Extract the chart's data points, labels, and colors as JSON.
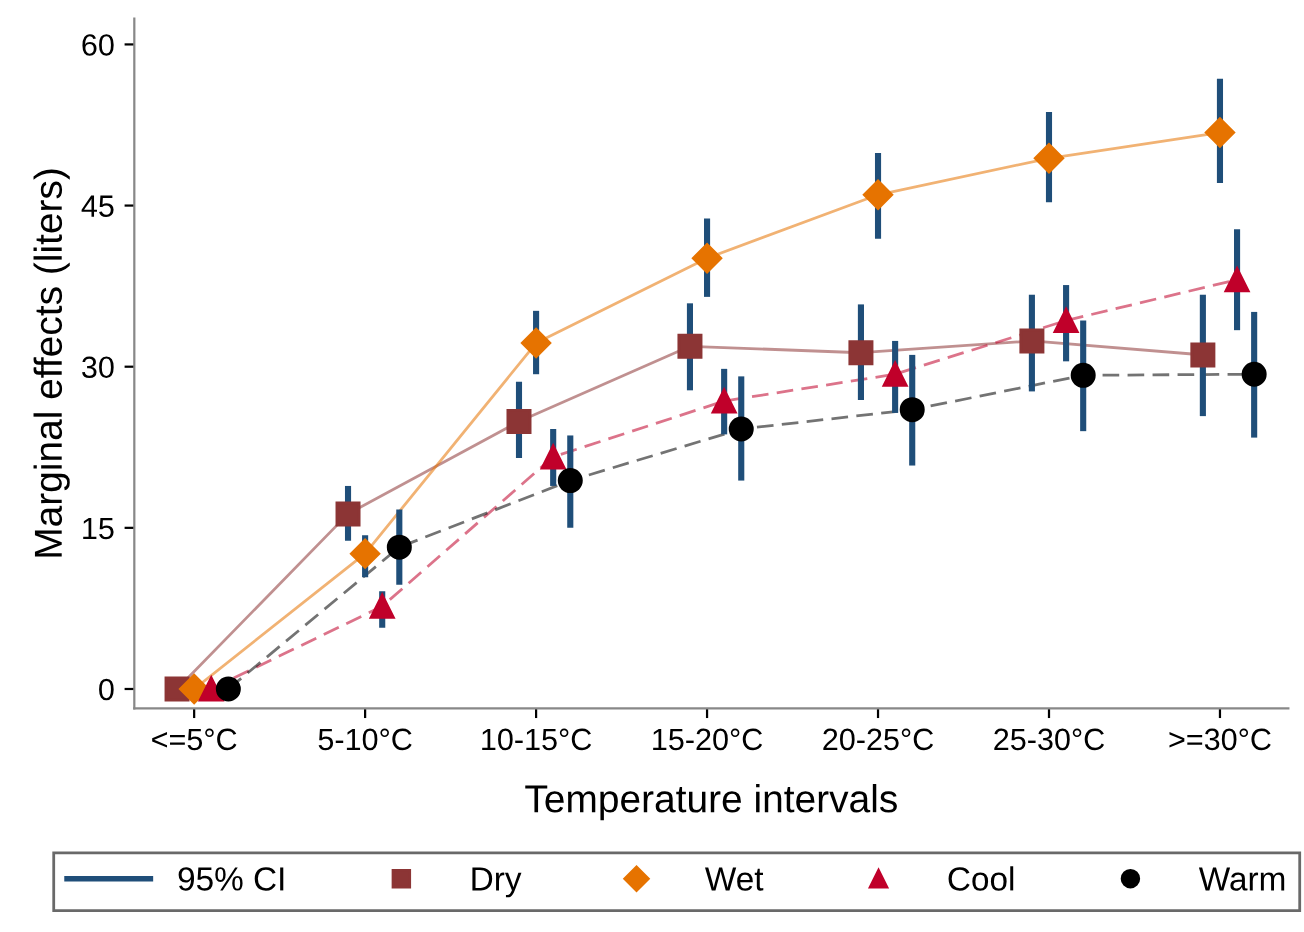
{
  "chart_data": {
    "type": "line",
    "xlabel": "Temperature intervals",
    "ylabel": "Marginal effects (liters)",
    "categories": [
      "<=5°C",
      "5-10°C",
      "10-15°C",
      "15-20°C",
      "20-25°C",
      "25-30°C",
      ">=30°C"
    ],
    "ylim": [
      -1.8,
      62.4
    ],
    "yticks": [
      0,
      15,
      30,
      45,
      60
    ],
    "grid": false,
    "legend": "bottom",
    "series": [
      {
        "name": "95% CI",
        "color": "#1f4e79",
        "values": [
          null,
          null,
          null,
          null,
          null,
          null,
          null
        ],
        "marker": "none",
        "line_style": "solid"
      },
      {
        "name": "Dry",
        "color": "#8c3535",
        "marker": "square",
        "line_style": "solid",
        "values": [
          0,
          16.3,
          24.9,
          31.9,
          31.3,
          32.4,
          31.1
        ],
        "errors": [
          null,
          [
            13.8,
            18.9
          ],
          [
            21.5,
            28.6
          ],
          [
            27.8,
            35.9
          ],
          [
            26.9,
            35.8
          ],
          [
            27.7,
            36.7
          ],
          [
            25.4,
            36.7
          ]
        ]
      },
      {
        "name": "Wet",
        "color": "#e67300",
        "marker": "diamond",
        "line_style": "solid",
        "values": [
          0,
          12.6,
          32.2,
          40.1,
          46.0,
          49.4,
          51.8
        ],
        "errors": [
          null,
          [
            10.4,
            14.3
          ],
          [
            29.3,
            35.2
          ],
          [
            36.5,
            43.8
          ],
          [
            41.9,
            49.9
          ],
          [
            45.3,
            53.7
          ],
          [
            47.1,
            56.8
          ]
        ]
      },
      {
        "name": "Cool",
        "color": "#c0002a",
        "marker": "triangle",
        "line_style": "dashed",
        "values": [
          0,
          7.7,
          21.6,
          26.8,
          29.3,
          34.3,
          38.1
        ],
        "errors": [
          null,
          [
            5.7,
            9.1
          ],
          [
            18.9,
            24.2
          ],
          [
            23.7,
            29.8
          ],
          [
            25.7,
            32.4
          ],
          [
            30.5,
            37.6
          ],
          [
            33.4,
            42.8
          ]
        ]
      },
      {
        "name": "Warm",
        "color": "#000000",
        "marker": "circle",
        "line_style": "dashed",
        "values": [
          0,
          13.2,
          19.4,
          24.2,
          26.0,
          29.2,
          29.3
        ],
        "errors": [
          null,
          [
            9.7,
            16.7
          ],
          [
            15.0,
            23.6
          ],
          [
            19.4,
            29.1
          ],
          [
            20.8,
            31.1
          ],
          [
            24.0,
            34.3
          ],
          [
            23.4,
            35.1
          ]
        ]
      }
    ]
  }
}
